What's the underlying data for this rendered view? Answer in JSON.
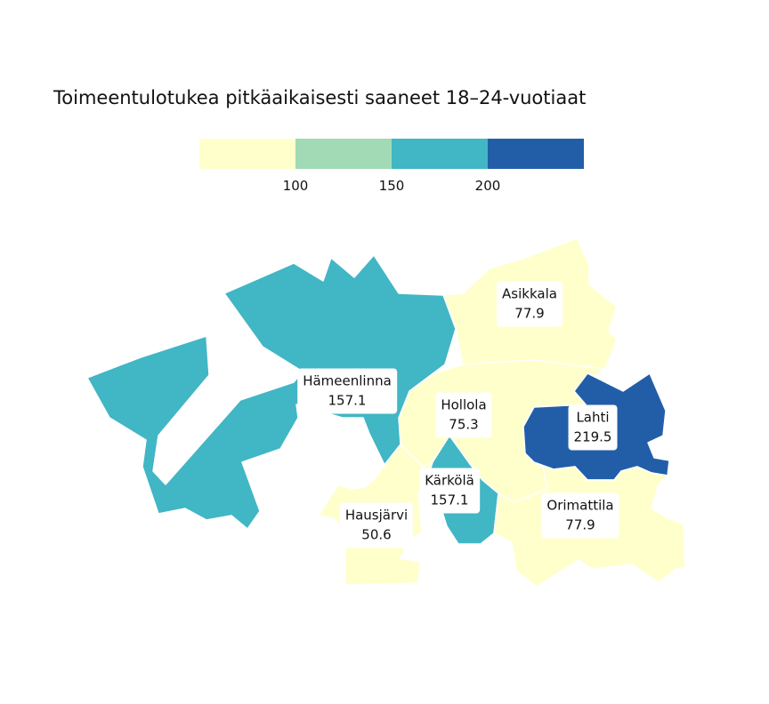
{
  "title": "Toimeentulotukea pitkäaikaisesti saaneet 18–24-vuotiaat",
  "legend": {
    "bins": [
      {
        "color": "#ffffcc"
      },
      {
        "color": "#a1dab4"
      },
      {
        "color": "#41b6c4"
      },
      {
        "color": "#225ea8"
      }
    ],
    "ticks": [
      "100",
      "150",
      "200"
    ]
  },
  "regions": [
    {
      "name": "Hämeenlinna",
      "value": "157.1",
      "color": "#41b6c4"
    },
    {
      "name": "Asikkala",
      "value": "77.9",
      "color": "#ffffcc"
    },
    {
      "name": "Hollola",
      "value": "75.3",
      "color": "#ffffcc"
    },
    {
      "name": "Lahti",
      "value": "219.5",
      "color": "#225ea8"
    },
    {
      "name": "Kärkölä",
      "value": "157.1",
      "color": "#41b6c4"
    },
    {
      "name": "Hausjärvi",
      "value": "50.6",
      "color": "#ffffcc"
    },
    {
      "name": "Orimattila",
      "value": "77.9",
      "color": "#ffffcc"
    }
  ]
}
